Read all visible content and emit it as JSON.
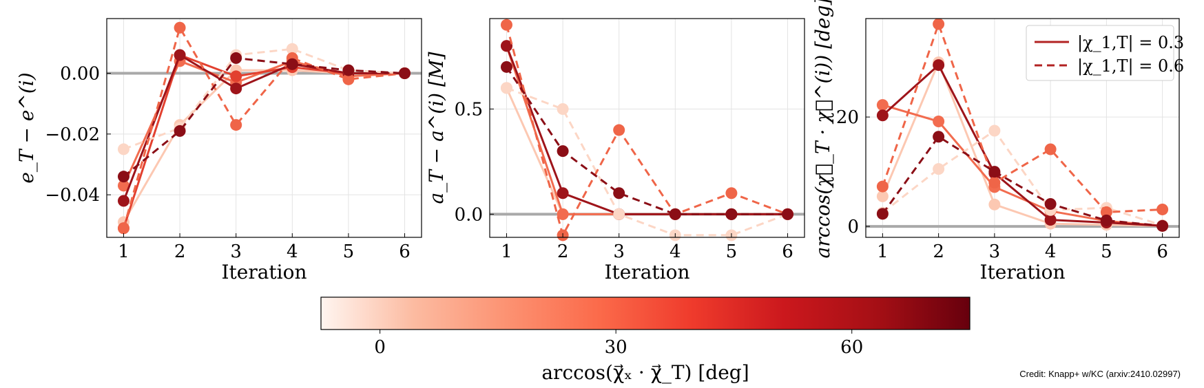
{
  "credit": "Credit: Knapp+ w/KC (arxiv:2410.02997)",
  "colorbar": {
    "label": "arccos(χ⃗ₓ · χ⃗_T) [deg]",
    "ticks": [
      "0",
      "30",
      "60"
    ],
    "tick_values": [
      0,
      30,
      60
    ],
    "range": [
      -7.5,
      75
    ],
    "colors": [
      "#fff5f0",
      "#fcbba1",
      "#fc9272",
      "#fb6a4a",
      "#ef3b2c",
      "#cb181d",
      "#a50f15",
      "#67000d"
    ]
  },
  "chart_data": [
    {
      "type": "line",
      "xlabel": "Iteration",
      "ylabel": "e_T − e^(i)",
      "x": [
        1,
        2,
        3,
        4,
        5,
        6
      ],
      "xticks": [
        "1",
        "2",
        "3",
        "4",
        "5",
        "6"
      ],
      "yticks": [
        "0.00",
        "−0.02",
        "−0.04"
      ],
      "ytick_values": [
        0.0,
        -0.02,
        -0.04
      ],
      "ylim": [
        -0.054,
        0.018
      ],
      "reference_line": 0,
      "grid": true,
      "series": [
        {
          "style": "solid",
          "color": "#fcc8b2",
          "values": [
            -0.049,
            -0.017,
            0.001,
            0.001,
            0.0,
            0.0
          ]
        },
        {
          "style": "solid",
          "color": "#f26c4f",
          "values": [
            -0.037,
            0.004,
            -0.003,
            0.004,
            -0.001,
            0.0
          ]
        },
        {
          "style": "solid",
          "color": "#e2402f",
          "values": [
            -0.051,
            0.006,
            -0.001,
            0.002,
            0.0,
            0.0
          ]
        },
        {
          "style": "solid",
          "color": "#9e141a",
          "values": [
            -0.042,
            0.006,
            -0.005,
            0.003,
            0.0,
            0.0
          ]
        },
        {
          "style": "dashed",
          "color": "#fcd6c5",
          "values": [
            -0.025,
            -0.018,
            0.006,
            0.008,
            0.001,
            0.0
          ]
        },
        {
          "style": "dashed",
          "color": "#ef6548",
          "values": [
            -0.051,
            0.015,
            -0.017,
            0.005,
            -0.002,
            0.0
          ]
        },
        {
          "style": "dashed",
          "color": "#8b0e16",
          "values": [
            -0.034,
            -0.019,
            0.005,
            0.003,
            0.001,
            0.0
          ]
        }
      ]
    },
    {
      "type": "line",
      "xlabel": "Iteration",
      "ylabel": "a_T − a^(i) [M]",
      "x": [
        1,
        2,
        3,
        4,
        5,
        6
      ],
      "xticks": [
        "1",
        "2",
        "3",
        "4",
        "5",
        "6"
      ],
      "yticks": [
        "0.5",
        "0.0"
      ],
      "ytick_values": [
        0.5,
        0.0
      ],
      "ylim": [
        -0.11,
        0.93
      ],
      "reference_line": 0,
      "grid": true,
      "series": [
        {
          "style": "solid",
          "color": "#fcc8b2",
          "values": [
            0.6,
            0.0,
            0.0,
            0.0,
            0.0,
            0.0
          ]
        },
        {
          "style": "solid",
          "color": "#f26c4f",
          "values": [
            0.8,
            0.0,
            0.0,
            0.0,
            0.0,
            0.0
          ]
        },
        {
          "style": "solid",
          "color": "#9e141a",
          "values": [
            0.8,
            0.1,
            0.0,
            0.0,
            0.0,
            0.0
          ]
        },
        {
          "style": "dashed",
          "color": "#fcd6c5",
          "values": [
            0.6,
            0.5,
            0.0,
            -0.1,
            -0.1,
            0.0
          ]
        },
        {
          "style": "dashed",
          "color": "#ef6548",
          "values": [
            0.9,
            -0.1,
            0.4,
            0.0,
            0.1,
            0.0
          ]
        },
        {
          "style": "dashed",
          "color": "#8b0e16",
          "values": [
            0.7,
            0.3,
            0.1,
            0.0,
            0.0,
            0.0
          ]
        }
      ]
    },
    {
      "type": "line",
      "xlabel": "Iteration",
      "ylabel": "arccos(χ⃗_T · χ⃗^(i)) [deg]",
      "x": [
        1,
        2,
        3,
        4,
        5,
        6
      ],
      "xticks": [
        "1",
        "2",
        "3",
        "4",
        "5",
        "6"
      ],
      "yticks": [
        "20",
        "0"
      ],
      "ytick_values": [
        20,
        0
      ],
      "ylim": [
        -2,
        38
      ],
      "reference_line": 0,
      "grid": true,
      "legend": {
        "position": "top-right",
        "entries": [
          {
            "label": "|χ_1,T| = 0.3",
            "style": "solid",
            "color": "#b22222"
          },
          {
            "label": "|χ_1,T| = 0.6",
            "style": "dashed",
            "color": "#b22222"
          }
        ]
      },
      "series": [
        {
          "style": "solid",
          "color": "#fcc8b2",
          "values": [
            5.5,
            30.0,
            4.0,
            0.5,
            0.3,
            0.1
          ]
        },
        {
          "style": "solid",
          "color": "#f26c4f",
          "values": [
            22.2,
            19.2,
            7.2,
            2.8,
            1.0,
            0.1
          ]
        },
        {
          "style": "solid",
          "color": "#9e141a",
          "values": [
            20.3,
            29.5,
            9.7,
            1.2,
            0.7,
            0.1
          ]
        },
        {
          "style": "dashed",
          "color": "#fcd6c5",
          "values": [
            2.5,
            10.5,
            17.5,
            3.0,
            3.4,
            0.2
          ]
        },
        {
          "style": "dashed",
          "color": "#ef6548",
          "values": [
            7.3,
            37.0,
            8.0,
            14.1,
            2.6,
            3.1
          ]
        },
        {
          "style": "dashed",
          "color": "#8b0e16",
          "values": [
            2.3,
            16.4,
            10.0,
            4.1,
            1.1,
            0.1
          ]
        }
      ]
    }
  ]
}
